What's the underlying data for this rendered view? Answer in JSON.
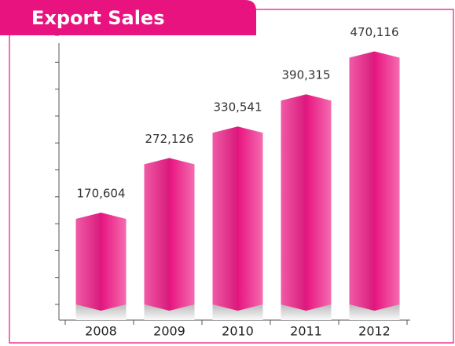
{
  "chart_data": {
    "type": "bar",
    "title": "Export Sales",
    "categories": [
      "2008",
      "2009",
      "2010",
      "2011",
      "2012"
    ],
    "values": [
      170604,
      272126,
      330541,
      390315,
      470116
    ],
    "value_labels": [
      "170,604",
      "272,126",
      "330,541",
      "390,315",
      "470,116"
    ],
    "color": "#e8137f",
    "ylim": [
      0,
      500000
    ],
    "yticks": [
      0,
      50000,
      100000,
      150000,
      200000,
      250000,
      300000,
      350000,
      400000,
      450000,
      500000
    ]
  }
}
